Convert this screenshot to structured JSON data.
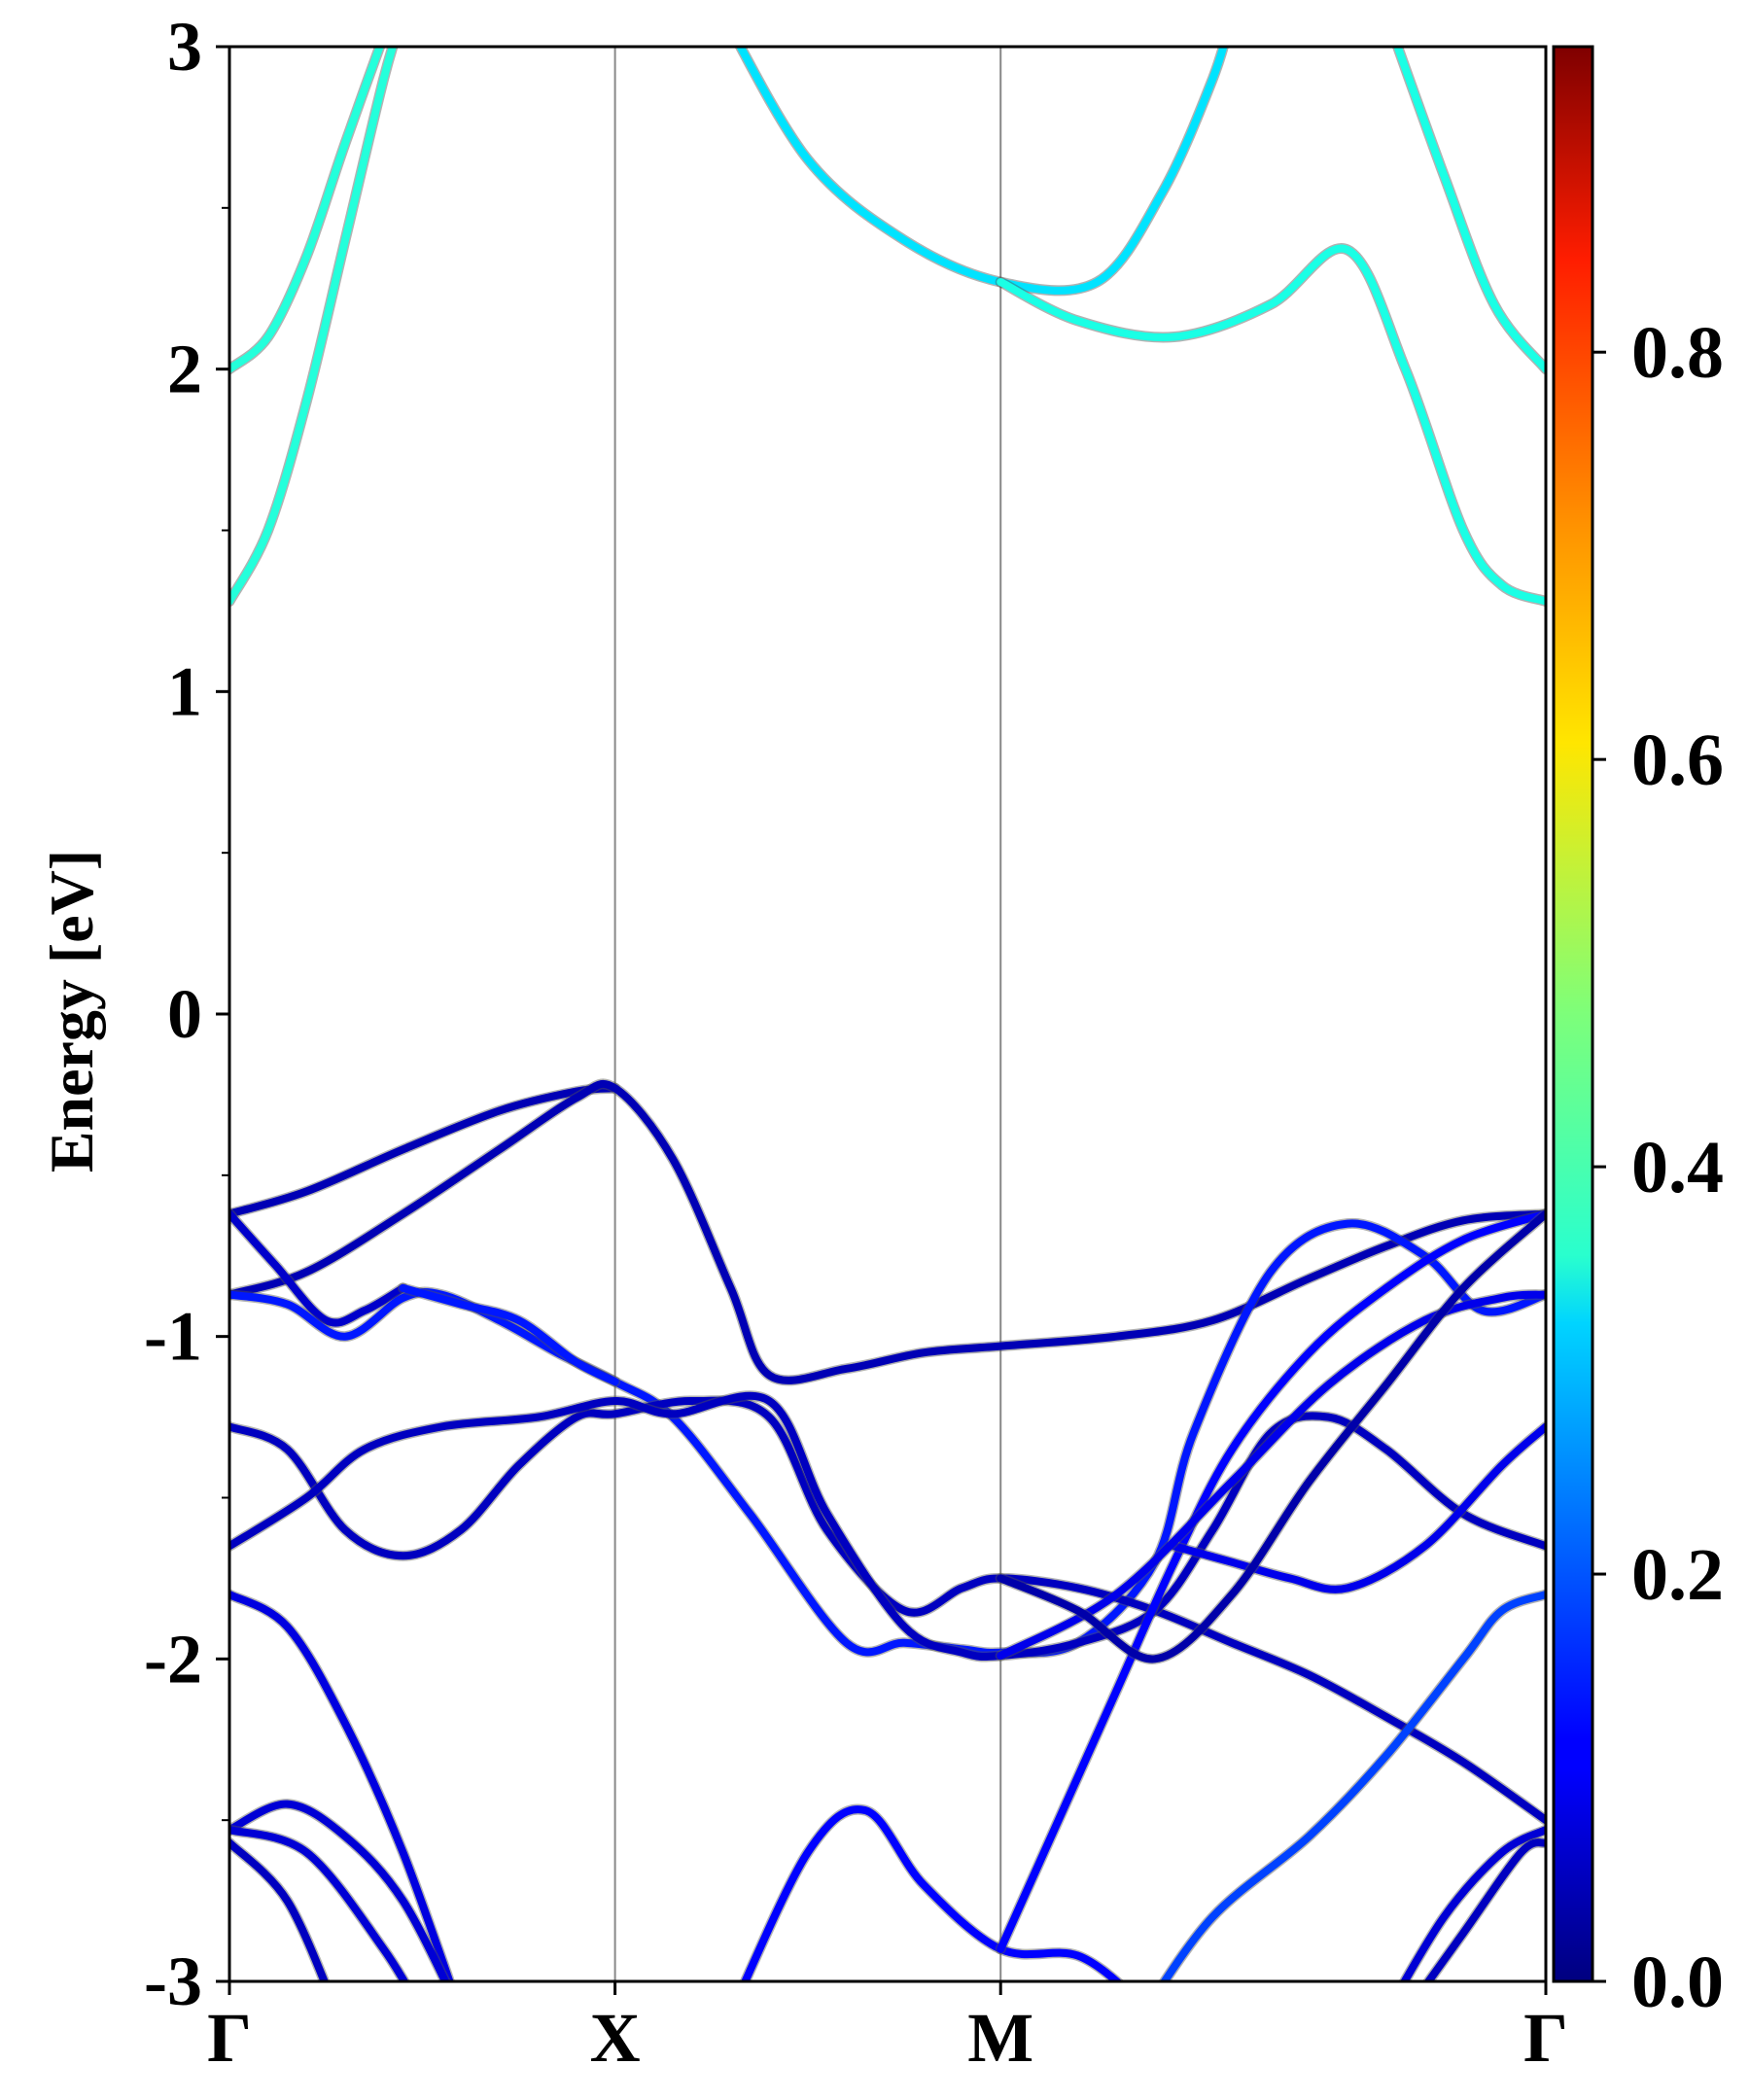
{
  "chart_data": {
    "type": "line",
    "ylabel": "Energy [eV]",
    "ylim": [
      -3,
      3
    ],
    "yticks": [
      -3,
      -2,
      -1,
      0,
      1,
      2,
      3
    ],
    "xlim": [
      0,
      3.414
    ],
    "kpath_labels": [
      {
        "label": "Γ",
        "x": 0
      },
      {
        "label": "X",
        "x": 1
      },
      {
        "label": "M",
        "x": 2
      },
      {
        "label": "Γ",
        "x": 3.414
      }
    ],
    "colorbar": {
      "min": 0.0,
      "max": 0.95,
      "ticks": [
        0.0,
        0.2,
        0.4,
        0.6,
        0.8
      ],
      "colormap": "jet"
    },
    "series": [
      {
        "weight": 0.39,
        "points": [
          [
            0,
            1.28
          ],
          [
            0.1,
            1.5
          ],
          [
            0.2,
            1.9
          ],
          [
            0.3,
            2.4
          ],
          [
            0.4,
            2.9
          ],
          [
            0.45,
            3.1
          ]
        ]
      },
      {
        "weight": 0.39,
        "points": [
          [
            0,
            2.0
          ],
          [
            0.1,
            2.1
          ],
          [
            0.2,
            2.35
          ],
          [
            0.3,
            2.7
          ],
          [
            0.42,
            3.1
          ]
        ]
      },
      {
        "weight": 0.33,
        "points": [
          [
            1.28,
            3.1
          ],
          [
            1.5,
            2.65
          ],
          [
            1.75,
            2.4
          ],
          [
            2,
            2.27
          ],
          [
            2.25,
            2.27
          ],
          [
            2.42,
            2.55
          ],
          [
            2.55,
            2.9
          ],
          [
            2.6,
            3.1
          ]
        ]
      },
      {
        "weight": 0.38,
        "points": [
          [
            2,
            2.27
          ],
          [
            2.2,
            2.15
          ],
          [
            2.45,
            2.1
          ],
          [
            2.7,
            2.2
          ],
          [
            2.9,
            2.37
          ],
          [
            3.05,
            2.0
          ],
          [
            3.2,
            1.5
          ],
          [
            3.3,
            1.33
          ],
          [
            3.414,
            1.28
          ]
        ]
      },
      {
        "weight": 0.38,
        "points": [
          [
            3.0,
            3.1
          ],
          [
            3.15,
            2.6
          ],
          [
            3.28,
            2.2
          ],
          [
            3.414,
            2.0
          ]
        ]
      },
      {
        "weight": 0.05,
        "points": [
          [
            0,
            -0.62
          ],
          [
            0.2,
            -0.55
          ],
          [
            0.45,
            -0.42
          ],
          [
            0.7,
            -0.3
          ],
          [
            0.9,
            -0.24
          ],
          [
            1,
            -0.23
          ]
        ]
      },
      {
        "weight": 0.05,
        "points": [
          [
            0,
            -0.87
          ],
          [
            0.2,
            -0.8
          ],
          [
            0.45,
            -0.62
          ],
          [
            0.7,
            -0.42
          ],
          [
            0.9,
            -0.26
          ],
          [
            1,
            -0.23
          ],
          [
            1.15,
            -0.45
          ],
          [
            1.3,
            -0.85
          ],
          [
            1.4,
            -1.12
          ],
          [
            1.6,
            -1.1
          ],
          [
            1.8,
            -1.05
          ],
          [
            2,
            -1.03
          ],
          [
            2.3,
            -1.0
          ],
          [
            2.55,
            -0.95
          ],
          [
            2.8,
            -0.82
          ],
          [
            3.0,
            -0.72
          ],
          [
            3.2,
            -0.64
          ],
          [
            3.414,
            -0.62
          ]
        ]
      },
      {
        "weight": 0.07,
        "points": [
          [
            0,
            -0.62
          ],
          [
            0.12,
            -0.78
          ],
          [
            0.25,
            -0.95
          ],
          [
            0.35,
            -0.92
          ],
          [
            0.45,
            -0.85
          ]
        ]
      },
      {
        "weight": 0.14,
        "points": [
          [
            0,
            -0.87
          ],
          [
            0.15,
            -0.9
          ],
          [
            0.3,
            -1.0
          ],
          [
            0.45,
            -0.88
          ],
          [
            0.55,
            -0.87
          ],
          [
            0.7,
            -0.95
          ],
          [
            0.85,
            -1.05
          ],
          [
            1,
            -1.14
          ],
          [
            1.15,
            -1.25
          ],
          [
            1.35,
            -1.55
          ],
          [
            1.6,
            -1.95
          ],
          [
            1.75,
            -1.95
          ],
          [
            1.9,
            -1.97
          ],
          [
            2,
            -1.98
          ],
          [
            2.2,
            -1.95
          ],
          [
            2.4,
            -1.7
          ],
          [
            2.5,
            -1.3
          ],
          [
            2.7,
            -0.8
          ],
          [
            2.9,
            -0.65
          ],
          [
            3.1,
            -0.75
          ],
          [
            3.25,
            -0.92
          ],
          [
            3.414,
            -0.87
          ]
        ]
      },
      {
        "weight": 0.14,
        "points": [
          [
            0.45,
            -0.85
          ],
          [
            0.6,
            -0.9
          ],
          [
            0.75,
            -0.95
          ],
          [
            0.9,
            -1.08
          ],
          [
            1,
            -1.14
          ]
        ]
      },
      {
        "weight": 0.06,
        "points": [
          [
            0,
            -1.28
          ],
          [
            0.15,
            -1.35
          ],
          [
            0.3,
            -1.6
          ],
          [
            0.45,
            -1.68
          ],
          [
            0.6,
            -1.6
          ],
          [
            0.75,
            -1.4
          ],
          [
            0.9,
            -1.25
          ],
          [
            1,
            -1.24
          ],
          [
            1.2,
            -1.2
          ],
          [
            1.4,
            -1.25
          ],
          [
            1.55,
            -1.6
          ],
          [
            1.75,
            -1.85
          ],
          [
            1.9,
            -1.78
          ],
          [
            2,
            -1.75
          ],
          [
            2.2,
            -1.78
          ],
          [
            2.4,
            -1.85
          ],
          [
            2.6,
            -1.95
          ],
          [
            2.8,
            -2.05
          ],
          [
            3.0,
            -2.18
          ],
          [
            3.2,
            -2.32
          ],
          [
            3.414,
            -2.5
          ]
        ]
      },
      {
        "weight": 0.06,
        "points": [
          [
            0,
            -1.65
          ],
          [
            0.2,
            -1.5
          ],
          [
            0.35,
            -1.35
          ],
          [
            0.55,
            -1.28
          ],
          [
            0.8,
            -1.25
          ],
          [
            1,
            -1.2
          ],
          [
            1.15,
            -1.24
          ],
          [
            1.4,
            -1.2
          ],
          [
            1.55,
            -1.55
          ],
          [
            1.75,
            -1.9
          ],
          [
            1.9,
            -1.98
          ],
          [
            2,
            -1.99
          ],
          [
            2.2,
            -1.95
          ],
          [
            2.4,
            -1.85
          ],
          [
            2.55,
            -1.6
          ],
          [
            2.7,
            -1.3
          ],
          [
            2.85,
            -1.25
          ],
          [
            3.0,
            -1.35
          ],
          [
            3.2,
            -1.55
          ],
          [
            3.414,
            -1.65
          ]
        ]
      },
      {
        "weight": 0.09,
        "points": [
          [
            0,
            -1.8
          ],
          [
            0.15,
            -1.9
          ],
          [
            0.3,
            -2.2
          ],
          [
            0.45,
            -2.6
          ],
          [
            0.6,
            -3.1
          ]
        ]
      },
      {
        "weight": 0.08,
        "points": [
          [
            0,
            -2.53
          ],
          [
            0.15,
            -2.45
          ],
          [
            0.3,
            -2.55
          ],
          [
            0.45,
            -2.75
          ],
          [
            0.6,
            -3.1
          ]
        ]
      },
      {
        "weight": 0.06,
        "points": [
          [
            0,
            -2.57
          ],
          [
            0.15,
            -2.75
          ],
          [
            0.28,
            -3.1
          ]
        ]
      },
      {
        "weight": 0.08,
        "points": [
          [
            0,
            -2.53
          ],
          [
            0.2,
            -2.6
          ],
          [
            0.4,
            -2.9
          ],
          [
            0.5,
            -3.1
          ]
        ]
      },
      {
        "weight": 0.12,
        "points": [
          [
            1.3,
            -3.1
          ],
          [
            1.5,
            -2.6
          ],
          [
            1.65,
            -2.47
          ],
          [
            1.8,
            -2.7
          ],
          [
            2,
            -2.9
          ],
          [
            2.2,
            -2.92
          ],
          [
            2.35,
            -3.05
          ]
        ]
      },
      {
        "weight": 0.12,
        "points": [
          [
            2,
            -2.9
          ],
          [
            2.15,
            -2.5
          ],
          [
            2.3,
            -2.1
          ],
          [
            2.45,
            -1.7
          ],
          [
            2.6,
            -1.35
          ],
          [
            2.8,
            -1.05
          ],
          [
            3.0,
            -0.85
          ],
          [
            3.2,
            -0.7
          ],
          [
            3.414,
            -0.62
          ]
        ]
      },
      {
        "weight": 0.1,
        "points": [
          [
            2.45,
            -1.65
          ],
          [
            2.6,
            -1.7
          ],
          [
            2.75,
            -1.75
          ],
          [
            2.9,
            -1.78
          ],
          [
            3.1,
            -1.65
          ],
          [
            3.3,
            -1.4
          ],
          [
            3.414,
            -1.28
          ]
        ]
      },
      {
        "weight": 0.1,
        "points": [
          [
            2,
            -1.99
          ],
          [
            2.3,
            -1.8
          ],
          [
            2.6,
            -1.45
          ],
          [
            2.85,
            -1.15
          ],
          [
            3.1,
            -0.95
          ],
          [
            3.3,
            -0.88
          ],
          [
            3.414,
            -0.87
          ]
        ]
      },
      {
        "weight": 0.18,
        "points": [
          [
            2.37,
            -3.1
          ],
          [
            2.55,
            -2.8
          ],
          [
            2.8,
            -2.55
          ],
          [
            3.0,
            -2.3
          ],
          [
            3.2,
            -2.0
          ],
          [
            3.3,
            -1.85
          ],
          [
            3.414,
            -1.8
          ]
        ]
      },
      {
        "weight": 0.08,
        "points": [
          [
            3.0,
            -3.1
          ],
          [
            3.15,
            -2.8
          ],
          [
            3.3,
            -2.6
          ],
          [
            3.414,
            -2.53
          ]
        ]
      },
      {
        "weight": 0.06,
        "points": [
          [
            3.05,
            -3.1
          ],
          [
            3.2,
            -2.85
          ],
          [
            3.35,
            -2.6
          ],
          [
            3.414,
            -2.57
          ]
        ]
      },
      {
        "weight": 0.04,
        "points": [
          [
            2,
            -1.75
          ],
          [
            2.2,
            -1.85
          ],
          [
            2.4,
            -2.0
          ],
          [
            2.6,
            -1.8
          ],
          [
            2.8,
            -1.45
          ],
          [
            3.0,
            -1.15
          ],
          [
            3.2,
            -0.85
          ],
          [
            3.414,
            -0.62
          ]
        ]
      }
    ]
  }
}
